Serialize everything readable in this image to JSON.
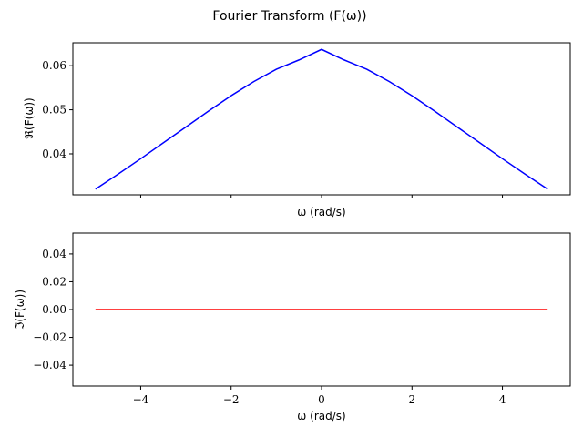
{
  "chart_data": {
    "type": "line",
    "title": "Fourier Transform (F(ω))",
    "x_range": [
      -5,
      5
    ],
    "x_samples": [
      -5,
      -4.5,
      -4,
      -3.5,
      -3,
      -2.5,
      -2,
      -1.5,
      -1,
      -0.5,
      0,
      0.5,
      1,
      1.5,
      2,
      2.5,
      3,
      3.5,
      4,
      4.5,
      5
    ],
    "panels": [
      {
        "xlabel": "ω (rad/s)",
        "ylabel": "ℜ(F(ω))",
        "xlim": [
          -5.5,
          5.5
        ],
        "ylim": [
          0.0307,
          0.0652
        ],
        "yticks": [
          0.04,
          0.05,
          0.06
        ],
        "ytick_labels": [
          "0.04",
          "0.05",
          "0.06"
        ],
        "xticks": [
          -4,
          -2,
          0,
          2,
          4
        ],
        "xtick_labels": [],
        "grid": false,
        "series": [
          {
            "color": "#0000ff",
            "x": [
              -5,
              -4.5,
              -4,
              -3.5,
              -3,
              -2.5,
              -2,
              -1.5,
              -1,
              -0.5,
              0,
              0.5,
              1,
              1.5,
              2,
              2.5,
              3,
              3.5,
              4,
              4.5,
              5
            ],
            "y": [
              0.032,
              0.0354,
              0.0389,
              0.0425,
              0.0461,
              0.0497,
              0.0532,
              0.0564,
              0.0592,
              0.0613,
              0.0637,
              0.0613,
              0.0592,
              0.0564,
              0.0532,
              0.0497,
              0.0461,
              0.0425,
              0.0389,
              0.0354,
              0.032
            ]
          }
        ]
      },
      {
        "xlabel": "ω (rad/s)",
        "ylabel": "ℑ(F(ω))",
        "xlim": [
          -5.5,
          5.5
        ],
        "ylim": [
          -0.055,
          0.055
        ],
        "yticks": [
          -0.04,
          -0.02,
          0.0,
          0.02,
          0.04
        ],
        "ytick_labels": [
          "−0.04",
          "−0.02",
          "0.00",
          "0.02",
          "0.04"
        ],
        "xticks": [
          -4,
          -2,
          0,
          2,
          4
        ],
        "xtick_labels": [
          "−4",
          "−2",
          "0",
          "2",
          "4"
        ],
        "grid": false,
        "series": [
          {
            "color": "#ff0000",
            "x": [
              -5,
              -4.5,
              -4,
              -3.5,
              -3,
              -2.5,
              -2,
              -1.5,
              -1,
              -0.5,
              0,
              0.5,
              1,
              1.5,
              2,
              2.5,
              3,
              3.5,
              4,
              4.5,
              5
            ],
            "y": [
              0,
              0,
              0,
              0,
              0,
              0,
              0,
              0,
              0,
              0,
              0,
              0,
              0,
              0,
              0,
              0,
              0,
              0,
              0,
              0,
              0
            ]
          }
        ]
      }
    ]
  }
}
